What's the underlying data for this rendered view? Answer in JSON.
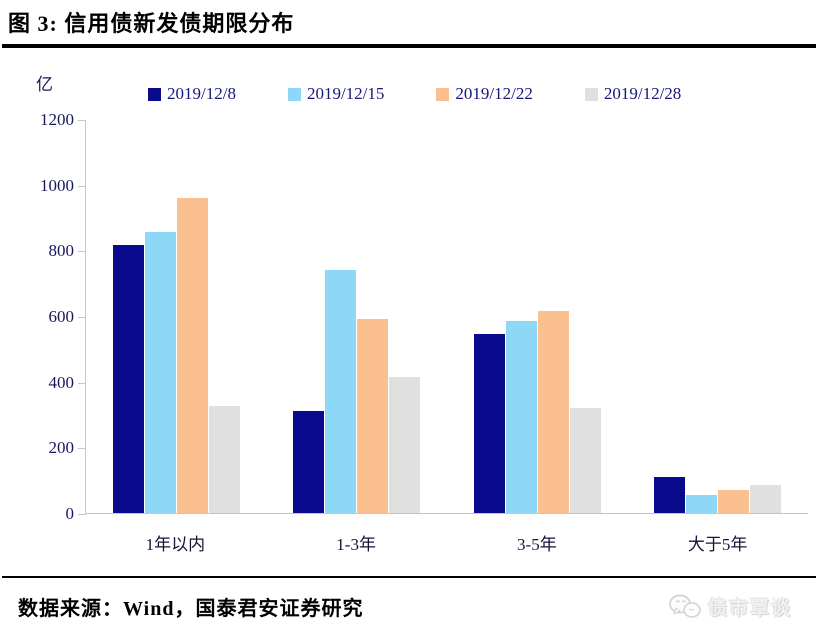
{
  "title": "图 3: 信用债新发债期限分布",
  "unit_label": "亿",
  "footer": {
    "source": "数据来源：Wind，国泰君安证券研究",
    "watermark": "债市覃谈",
    "watermark_icon": "chat-bubbles-icon"
  },
  "colors": {
    "axis_line": "#c6c6c6",
    "rule": "#000000",
    "legend_text": "#16167d",
    "axis_text": "#17175e"
  },
  "chart_data": {
    "type": "bar",
    "title": "信用债新发债期限分布",
    "categories": [
      "1年以内",
      "1-3年",
      "3-5年",
      "大于5年"
    ],
    "series": [
      {
        "name": "2019/12/8",
        "color": "#0a0a8c",
        "values": [
          815,
          310,
          545,
          110
        ]
      },
      {
        "name": "2019/12/15",
        "color": "#8dd7f7",
        "values": [
          855,
          740,
          585,
          55
        ]
      },
      {
        "name": "2019/12/22",
        "color": "#fac090",
        "values": [
          960,
          590,
          615,
          70
        ]
      },
      {
        "name": "2019/12/28",
        "color": "#e0e0e0",
        "values": [
          325,
          415,
          320,
          85
        ]
      }
    ],
    "xlabel": "",
    "ylabel": "亿",
    "ylim": [
      0,
      1200
    ],
    "yticks": [
      0,
      200,
      400,
      600,
      800,
      1000,
      1200
    ],
    "legend_position": "top",
    "grid": false
  }
}
